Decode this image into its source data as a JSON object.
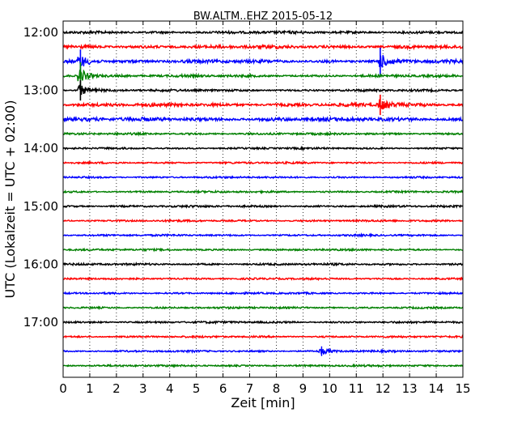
{
  "chart_data": {
    "type": "line",
    "title": "BW.ALTM..EHZ 2015-05-12",
    "xlabel": "Zeit  [min]",
    "ylabel": "UTC (Lokalzeit = UTC + 02:00)",
    "xlim": [
      0,
      15
    ],
    "x_ticks": [
      "0",
      "1",
      "2",
      "3",
      "4",
      "5",
      "6",
      "7",
      "8",
      "9",
      "10",
      "11",
      "12",
      "13",
      "14",
      "15"
    ],
    "y_tick_labels": [
      "12:00",
      "13:00",
      "14:00",
      "15:00",
      "16:00",
      "17:00"
    ],
    "y_tick_rows": [
      0,
      4,
      8,
      12,
      16,
      20
    ],
    "grid": "vertical dotted",
    "row_colors": [
      "#000000",
      "#ff0000",
      "#0000ff",
      "#008000"
    ],
    "series": [
      {
        "start": "12:00",
        "amplitude": 1.3
      },
      {
        "start": "12:15",
        "amplitude": 1.6
      },
      {
        "start": "12:30",
        "amplitude": 1.6,
        "events": [
          {
            "t": 0.65,
            "amp": 7
          },
          {
            "t": 11.9,
            "amp": 8
          }
        ]
      },
      {
        "start": "12:45",
        "amplitude": 1.2,
        "events": [
          {
            "t": 0.65,
            "amp": 8
          }
        ]
      },
      {
        "start": "13:00",
        "amplitude": 1.1,
        "events": [
          {
            "t": 0.65,
            "amp": 6
          }
        ]
      },
      {
        "start": "13:15",
        "amplitude": 1.6,
        "events": [
          {
            "t": 11.9,
            "amp": 6
          }
        ]
      },
      {
        "start": "13:30",
        "amplitude": 1.8
      },
      {
        "start": "13:45",
        "amplitude": 1.0
      },
      {
        "start": "14:00",
        "amplitude": 0.9
      },
      {
        "start": "14:15",
        "amplitude": 0.9
      },
      {
        "start": "14:30",
        "amplitude": 0.9
      },
      {
        "start": "14:45",
        "amplitude": 0.9
      },
      {
        "start": "15:00",
        "amplitude": 1.0
      },
      {
        "start": "15:15",
        "amplitude": 0.9
      },
      {
        "start": "15:30",
        "amplitude": 0.9
      },
      {
        "start": "15:45",
        "amplitude": 0.9
      },
      {
        "start": "16:00",
        "amplitude": 1.0
      },
      {
        "start": "16:15",
        "amplitude": 0.9
      },
      {
        "start": "16:30",
        "amplitude": 0.9
      },
      {
        "start": "16:45",
        "amplitude": 0.9
      },
      {
        "start": "17:00",
        "amplitude": 1.0
      },
      {
        "start": "17:15",
        "amplitude": 0.9
      },
      {
        "start": "17:30",
        "amplitude": 0.9,
        "events": [
          {
            "t": 9.7,
            "amp": 3
          }
        ]
      },
      {
        "start": "17:45",
        "amplitude": 0.9
      }
    ]
  }
}
